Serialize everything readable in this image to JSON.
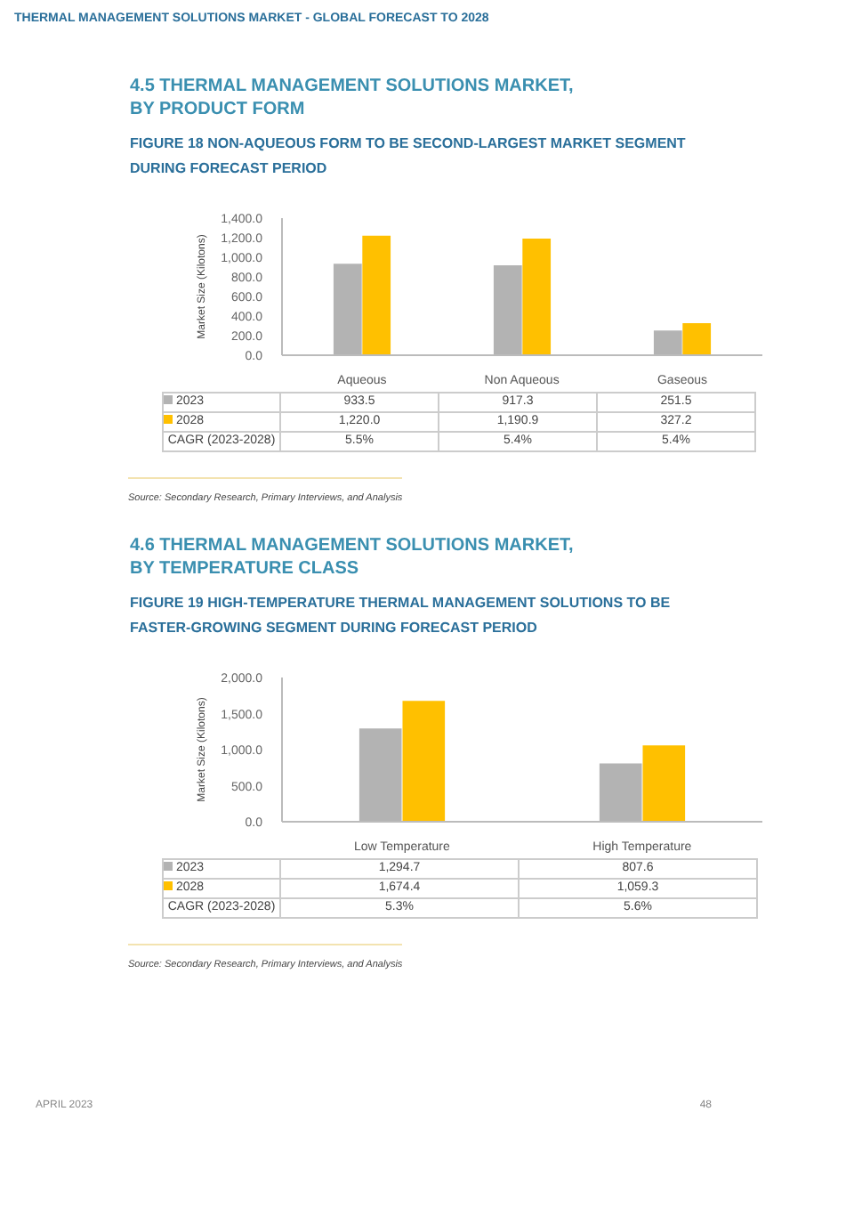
{
  "chart_data": [
    {
      "type": "bar",
      "title": "4.5 THERMAL MANAGEMENT SOLUTIONS MARKET, BY PRODUCT FORM",
      "subtitle": "FIGURE 18 NON-AQUEOUS FORM TO BE SECOND-LARGEST MARKET SEGMENT DURING FORECAST PERIOD",
      "ylabel": "Market Size (Kilotons)",
      "categories": [
        "Aqueous",
        "Non Aqueous",
        "Gaseous"
      ],
      "series": [
        {
          "name": "2023",
          "color": "#b3b3b3",
          "values": [
            933.5,
            917.3,
            251.5
          ],
          "value_labels": [
            "933.5",
            "917.3",
            "251.5"
          ]
        },
        {
          "name": "2028",
          "color": "#ffc000",
          "values": [
            1220.0,
            1190.9,
            327.2
          ],
          "value_labels": [
            "1,220.0",
            "1,190.9",
            "327.2"
          ]
        }
      ],
      "ylim": [
        0,
        1400
      ],
      "yticks": [
        {
          "value": 0,
          "label": "0.0"
        },
        {
          "value": 200,
          "label": "200.0"
        },
        {
          "value": 400,
          "label": "400.0"
        },
        {
          "value": 600,
          "label": "600.0"
        },
        {
          "value": 800,
          "label": "800.0"
        },
        {
          "value": 1000,
          "label": "1,000.0"
        },
        {
          "value": 1200,
          "label": "1,200.0"
        },
        {
          "value": 1400,
          "label": "1,400.0"
        }
      ],
      "grid": false,
      "legend": "bottom",
      "annotations": [
        "THERMAL MANAGEMENT SOLUTIONS MARKET - GLOBAL FORECAST TO 2028",
        "CAGR (2023-2028)",
        "5.5%",
        "5.4%",
        "5.4%",
        "Source: Secondary Research, Primary Interviews, and Analysis"
      ]
    },
    {
      "type": "bar",
      "title": "4.6 THERMAL MANAGEMENT SOLUTIONS MARKET, BY TEMPERATURE CLASS",
      "subtitle": "FIGURE 19 HIGH-TEMPERATURE THERMAL MANAGEMENT SOLUTIONS TO BE FASTER-GROWING SEGMENT DURING FORECAST PERIOD",
      "ylabel": "Market Size (Kilotons)",
      "categories": [
        "Low Temperature",
        "High Temperature"
      ],
      "series": [
        {
          "name": "2023",
          "color": "#b3b3b3",
          "values": [
            1294.7,
            807.6
          ],
          "value_labels": [
            "1,294.7",
            "807.6"
          ]
        },
        {
          "name": "2028",
          "color": "#ffc000",
          "values": [
            1674.4,
            1059.3
          ],
          "value_labels": [
            "1,674.4",
            "1,059.3"
          ]
        }
      ],
      "ylim": [
        0,
        2000
      ],
      "yticks": [
        {
          "value": 0,
          "label": "0.0"
        },
        {
          "value": 500,
          "label": "500.0"
        },
        {
          "value": 1000,
          "label": "1,000.0"
        },
        {
          "value": 1500,
          "label": "1,500.0"
        },
        {
          "value": 2000,
          "label": "2,000.0"
        }
      ],
      "grid": false,
      "legend": "bottom",
      "annotations": [
        "CAGR (2023-2028)",
        "5.3%",
        "5.6%",
        "Source: Secondary Research, Primary Interviews, and Analysis",
        "APRIL 2023",
        "48"
      ]
    }
  ]
}
